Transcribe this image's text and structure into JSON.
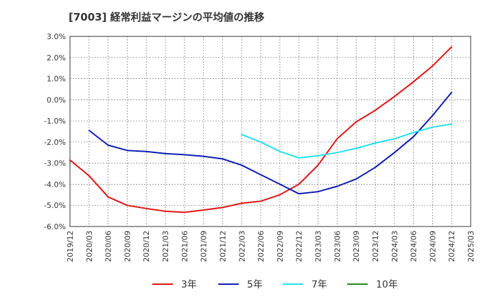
{
  "chart_data": {
    "type": "line",
    "title": "[7003]  経常利益マージンの平均値の推移",
    "x_categories": [
      "2019/12",
      "2020/03",
      "2020/06",
      "2020/09",
      "2020/12",
      "2021/03",
      "2021/06",
      "2021/09",
      "2021/12",
      "2022/03",
      "2022/06",
      "2022/09",
      "2022/12",
      "2023/03",
      "2023/06",
      "2023/09",
      "2023/12",
      "2024/03",
      "2024/06",
      "2024/09",
      "2024/12",
      "2025/03"
    ],
    "y_ticks": [
      "3.0%",
      "2.0%",
      "1.0%",
      "0.0%",
      "-1.0%",
      "-2.0%",
      "-3.0%",
      "-4.0%",
      "-5.0%",
      "-6.0%"
    ],
    "ylim": [
      -6.0,
      3.0
    ],
    "y_unit": "%",
    "grid": true,
    "legend_position": "bottom",
    "series": [
      {
        "name": "3年",
        "color": "#e01010",
        "points": [
          [
            "2019/12",
            -2.85
          ],
          [
            "2020/03",
            -3.6
          ],
          [
            "2020/06",
            -4.6
          ],
          [
            "2020/09",
            -5.0
          ],
          [
            "2020/12",
            -5.15
          ],
          [
            "2021/03",
            -5.28
          ],
          [
            "2021/06",
            -5.33
          ],
          [
            "2021/09",
            -5.22
          ],
          [
            "2021/12",
            -5.1
          ],
          [
            "2022/03",
            -4.9
          ],
          [
            "2022/06",
            -4.8
          ],
          [
            "2022/09",
            -4.5
          ],
          [
            "2022/12",
            -4.0
          ],
          [
            "2023/03",
            -3.1
          ],
          [
            "2023/06",
            -1.85
          ],
          [
            "2023/09",
            -1.05
          ],
          [
            "2023/12",
            -0.5
          ],
          [
            "2024/03",
            0.15
          ],
          [
            "2024/06",
            0.85
          ],
          [
            "2024/09",
            1.6
          ],
          [
            "2024/12",
            2.5
          ]
        ]
      },
      {
        "name": "5年",
        "color": "#0a1ab4",
        "points": [
          [
            "2020/03",
            -1.45
          ],
          [
            "2020/06",
            -2.15
          ],
          [
            "2020/09",
            -2.4
          ],
          [
            "2020/12",
            -2.45
          ],
          [
            "2021/03",
            -2.55
          ],
          [
            "2021/06",
            -2.6
          ],
          [
            "2021/09",
            -2.68
          ],
          [
            "2021/12",
            -2.8
          ],
          [
            "2022/03",
            -3.1
          ],
          [
            "2022/06",
            -3.55
          ],
          [
            "2022/09",
            -4.0
          ],
          [
            "2022/12",
            -4.45
          ],
          [
            "2023/03",
            -4.35
          ],
          [
            "2023/06",
            -4.1
          ],
          [
            "2023/09",
            -3.75
          ],
          [
            "2023/12",
            -3.2
          ],
          [
            "2024/03",
            -2.5
          ],
          [
            "2024/06",
            -1.75
          ],
          [
            "2024/09",
            -0.75
          ],
          [
            "2024/12",
            0.35
          ]
        ]
      },
      {
        "name": "7年",
        "color": "#22e0f0",
        "points": [
          [
            "2022/03",
            -1.65
          ],
          [
            "2022/06",
            -2.0
          ],
          [
            "2022/09",
            -2.45
          ],
          [
            "2022/12",
            -2.75
          ],
          [
            "2023/03",
            -2.65
          ],
          [
            "2023/06",
            -2.5
          ],
          [
            "2023/09",
            -2.3
          ],
          [
            "2023/12",
            -2.05
          ],
          [
            "2024/03",
            -1.85
          ],
          [
            "2024/06",
            -1.55
          ],
          [
            "2024/09",
            -1.3
          ],
          [
            "2024/12",
            -1.15
          ]
        ]
      },
      {
        "name": "10年",
        "color": "#1a8a1a",
        "points": []
      }
    ]
  }
}
